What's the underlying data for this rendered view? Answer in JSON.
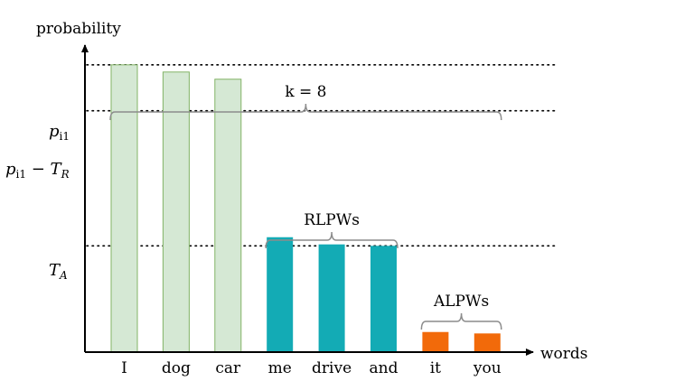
{
  "chart_data": {
    "type": "bar",
    "yaxis_label": "probability",
    "xaxis_label": "words",
    "categories": [
      "I",
      "dog",
      "car",
      "me",
      "drive",
      "and",
      "it",
      "you"
    ],
    "values": [
      1.0,
      0.975,
      0.95,
      0.4,
      0.375,
      0.37,
      0.07,
      0.065
    ],
    "groups": [
      "top",
      "top",
      "top",
      "rlpw",
      "rlpw",
      "rlpw",
      "alpw",
      "alpw"
    ],
    "colors": {
      "top_fill": "#d5e8d4",
      "top_stroke": "#82b366",
      "rlpw_fill": "#13abb5",
      "alpw_fill": "#f26a0a",
      "axis": "#000000",
      "brace": "#8c8c8c"
    },
    "reference_lines": [
      {
        "label": "p_i1",
        "value": 1.0
      },
      {
        "label": "p_i1 − T_R",
        "value": 0.84
      },
      {
        "label": "T_A",
        "value": 0.37
      }
    ],
    "annotations": [
      {
        "text": "k = 8",
        "from": 0,
        "to": 7
      },
      {
        "text": "RLPWs",
        "from": 3,
        "to": 5
      },
      {
        "text": "ALPWs",
        "from": 6,
        "to": 7
      }
    ],
    "ylim": [
      0,
      1.1
    ],
    "grid": false,
    "legend": "none"
  }
}
